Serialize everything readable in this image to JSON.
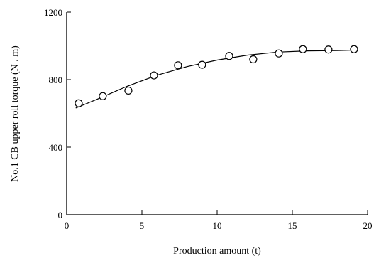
{
  "chart_data": {
    "type": "scatter",
    "xlabel": "Production amount (t)",
    "ylabel": "No.1 CB upper roll torque (N . m)",
    "xlim": [
      0,
      20
    ],
    "ylim": [
      0,
      1200
    ],
    "x_ticks": [
      0,
      5,
      10,
      15,
      20
    ],
    "y_ticks": [
      0,
      400,
      800,
      1200
    ],
    "grid": false,
    "series": [
      {
        "style": "open-circle",
        "points": [
          {
            "x": 0.8,
            "y": 660
          },
          {
            "x": 2.4,
            "y": 702
          },
          {
            "x": 4.1,
            "y": 735
          },
          {
            "x": 5.8,
            "y": 825
          },
          {
            "x": 7.4,
            "y": 885
          },
          {
            "x": 9.0,
            "y": 888
          },
          {
            "x": 10.8,
            "y": 940
          },
          {
            "x": 12.4,
            "y": 920
          },
          {
            "x": 14.1,
            "y": 955
          },
          {
            "x": 15.7,
            "y": 980
          },
          {
            "x": 17.4,
            "y": 978
          },
          {
            "x": 19.1,
            "y": 980
          }
        ]
      },
      {
        "style": "fitted-curve",
        "points": [
          {
            "x": 0.6,
            "y": 632
          },
          {
            "x": 2,
            "y": 683
          },
          {
            "x": 4,
            "y": 760
          },
          {
            "x": 6,
            "y": 826
          },
          {
            "x": 8,
            "y": 877
          },
          {
            "x": 10,
            "y": 916
          },
          {
            "x": 12,
            "y": 945
          },
          {
            "x": 14,
            "y": 963
          },
          {
            "x": 16,
            "y": 970
          },
          {
            "x": 18,
            "y": 972
          },
          {
            "x": 19.3,
            "y": 975
          }
        ]
      }
    ]
  }
}
